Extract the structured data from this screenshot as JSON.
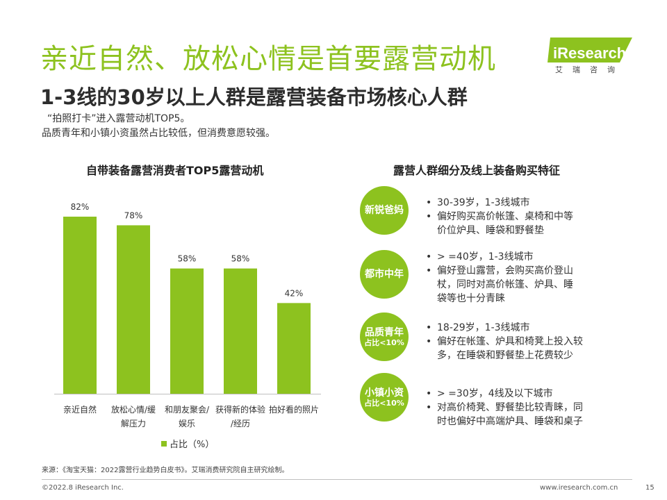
{
  "header": {
    "title": "亲近自然、放松心情是首要露营动机",
    "subtitle": "1-3线的30岁以上人群是露营装备市场核心人群",
    "intro": [
      "“拍照打卡”进入露营动机TOP5。",
      "品质青年和小镇小资虽然占比较低，但消费意愿较强。"
    ]
  },
  "logo": {
    "text": "iResearch",
    "sub": "艾瑞咨询"
  },
  "chart_data": {
    "type": "bar",
    "title": "自带装备露营消费者TOP5露营动机",
    "categories": [
      [
        "亲近自然"
      ],
      [
        "放松心情/缓",
        "解压力"
      ],
      [
        "和朋友聚会/",
        "娱乐"
      ],
      [
        "获得新的体验",
        "/经历"
      ],
      [
        "拍好看的照片"
      ]
    ],
    "series": [
      {
        "name": "占比（%）",
        "values": [
          82,
          78,
          58,
          58,
          42
        ],
        "labels": [
          "82%",
          "78%",
          "58%",
          "58%",
          "42%"
        ]
      }
    ],
    "ylim": [
      0,
      100
    ],
    "grid": false,
    "legend": "bottom",
    "color": "#8dc21f"
  },
  "segments": {
    "title": "露营人群细分及线上装备购买特征",
    "items": [
      {
        "name": "新锐爸妈",
        "note": "",
        "bullets": [
          [
            "30-39岁，1-3线城市"
          ],
          [
            "偏好购买高价帐篷、桌椅和中等",
            "价位炉具、睡袋和野餐垫"
          ]
        ]
      },
      {
        "name": "都市中年",
        "note": "",
        "bullets": [
          [
            "> =40岁，1-3线城市"
          ],
          [
            "偏好登山露营，会购买高价登山",
            "杖，同时对高价帐篷、炉具、睡",
            "袋等也十分青睐"
          ]
        ]
      },
      {
        "name": "品质青年",
        "note": "占比<10%",
        "bullets": [
          [
            "18-29岁，1-3线城市"
          ],
          [
            "偏好在帐篷、炉具和椅凳上投入较",
            "多，在睡袋和野餐垫上花费较少"
          ]
        ]
      },
      {
        "name": "小镇小资",
        "note": "占比<10%",
        "bullets": [
          [
            "> =30岁，4线及以下城市"
          ],
          [
            "对高价椅凳、野餐垫比较青睐，同",
            "时也偏好中高端炉具、睡袋和桌子"
          ]
        ]
      }
    ]
  },
  "colors": {
    "accent": "#8dc21f",
    "text": "#333333"
  },
  "footer": {
    "source": "来源：《淘宝天猫：2022露营行业趋势白皮书》。艾瑞消费研究院自主研究绘制。",
    "copyright": "©2022.8 iResearch Inc.",
    "url": "www.iresearch.com.cn",
    "page": "15"
  }
}
